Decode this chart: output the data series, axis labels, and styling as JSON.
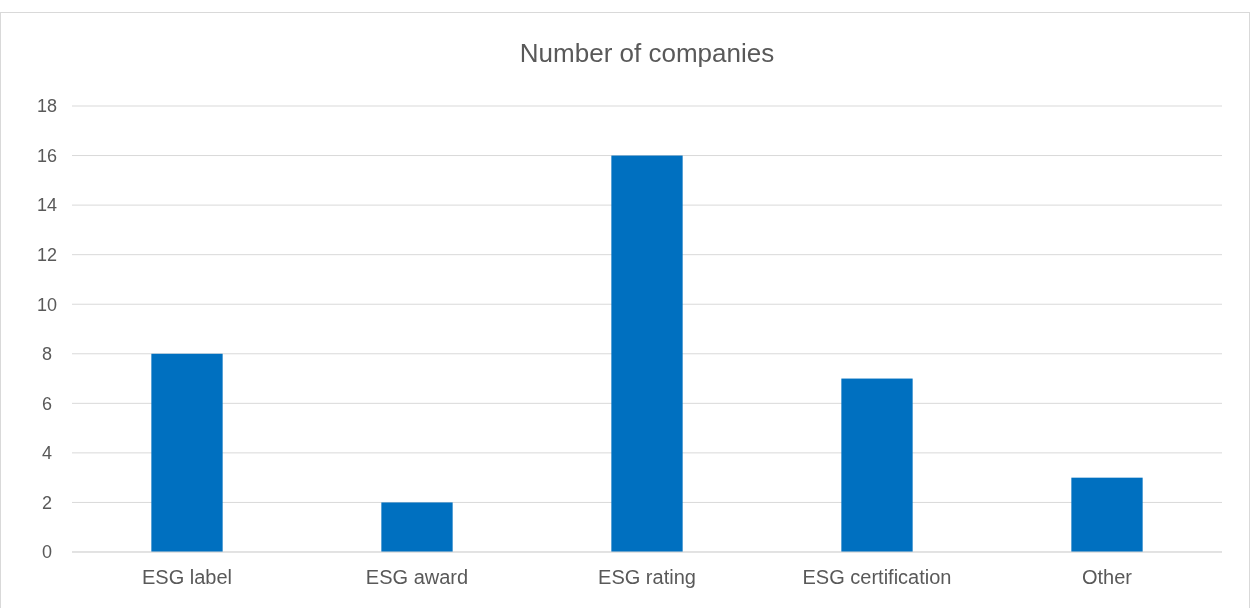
{
  "chart_data": {
    "type": "bar",
    "title": "Number of companies",
    "categories": [
      "ESG label",
      "ESG award",
      "ESG rating",
      "ESG certification",
      "Other"
    ],
    "values": [
      8,
      2,
      16,
      7,
      3
    ],
    "color": "#0070c0",
    "ylim": [
      0,
      18
    ],
    "yticks": [
      0,
      2,
      4,
      6,
      8,
      10,
      12,
      14,
      16,
      18
    ],
    "grid": "y"
  }
}
